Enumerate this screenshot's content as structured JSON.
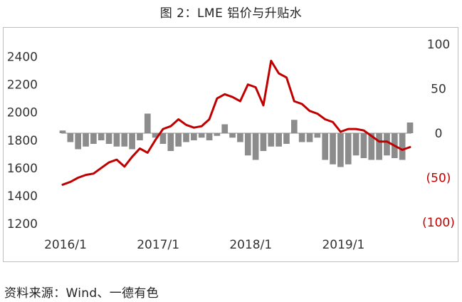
{
  "title": "图 2：LME 铝价与升贴水",
  "source": "资料来源：Wind、一德有色",
  "chart_data": {
    "type": "line",
    "x_ticks": [
      "2016/1",
      "2017/1",
      "2018/1",
      "2019/1"
    ],
    "y_left": {
      "ticks": [
        "1200",
        "1400",
        "1600",
        "1800",
        "2000",
        "2200",
        "2400"
      ],
      "range": [
        1200,
        2500
      ]
    },
    "y_right": {
      "ticks": [
        "100",
        "50",
        "0",
        "(50)",
        "(100)"
      ],
      "tick_colors": [
        "#333333",
        "#333333",
        "#333333",
        "#c00000",
        "#c00000"
      ],
      "range": [
        -100,
        100
      ]
    },
    "series": [
      {
        "kind": "line",
        "axis": "left",
        "color": "#c00000",
        "x": [
          "2016-01",
          "2016-02",
          "2016-03",
          "2016-04",
          "2016-05",
          "2016-06",
          "2016-07",
          "2016-08",
          "2016-09",
          "2016-10",
          "2016-11",
          "2016-12",
          "2017-01",
          "2017-02",
          "2017-03",
          "2017-04",
          "2017-05",
          "2017-06",
          "2017-07",
          "2017-08",
          "2017-09",
          "2017-10",
          "2017-11",
          "2017-12",
          "2018-01",
          "2018-02",
          "2018-03",
          "2018-04",
          "2018-05",
          "2018-06",
          "2018-07",
          "2018-08",
          "2018-09",
          "2018-10",
          "2018-11",
          "2018-12",
          "2019-01",
          "2019-02",
          "2019-03",
          "2019-04",
          "2019-05",
          "2019-06",
          "2019-07",
          "2019-08",
          "2019-09",
          "2019-10"
        ],
        "values": [
          1480,
          1500,
          1530,
          1550,
          1560,
          1600,
          1640,
          1660,
          1610,
          1680,
          1740,
          1710,
          1800,
          1880,
          1900,
          1950,
          1910,
          1890,
          1900,
          1950,
          2100,
          2130,
          2110,
          2080,
          2200,
          2180,
          2050,
          2370,
          2280,
          2250,
          2080,
          2060,
          2010,
          1990,
          1950,
          1930,
          1860,
          1880,
          1880,
          1870,
          1830,
          1790,
          1790,
          1760,
          1730,
          1750
        ]
      },
      {
        "kind": "bar",
        "axis": "right",
        "color": "#8c8c8c",
        "x": [
          "2016-01",
          "2016-02",
          "2016-03",
          "2016-04",
          "2016-05",
          "2016-06",
          "2016-07",
          "2016-08",
          "2016-09",
          "2016-10",
          "2016-11",
          "2016-12",
          "2017-01",
          "2017-02",
          "2017-03",
          "2017-04",
          "2017-05",
          "2017-06",
          "2017-07",
          "2017-08",
          "2017-09",
          "2017-10",
          "2017-11",
          "2017-12",
          "2018-01",
          "2018-02",
          "2018-03",
          "2018-04",
          "2018-05",
          "2018-06",
          "2018-07",
          "2018-08",
          "2018-09",
          "2018-10",
          "2018-11",
          "2018-12",
          "2019-01",
          "2019-02",
          "2019-03",
          "2019-04",
          "2019-05",
          "2019-06",
          "2019-07",
          "2019-08",
          "2019-09",
          "2019-10"
        ],
        "values": [
          3,
          -10,
          -18,
          -15,
          -12,
          -8,
          -12,
          -15,
          -15,
          -18,
          -8,
          22,
          -5,
          -12,
          -20,
          -15,
          -10,
          -8,
          -5,
          -8,
          -3,
          10,
          -5,
          -10,
          -25,
          -30,
          -20,
          -15,
          -15,
          -12,
          15,
          -10,
          -10,
          -5,
          -30,
          -35,
          -38,
          -35,
          -25,
          -28,
          -30,
          -30,
          -25,
          -28,
          -30,
          12
        ]
      }
    ]
  }
}
